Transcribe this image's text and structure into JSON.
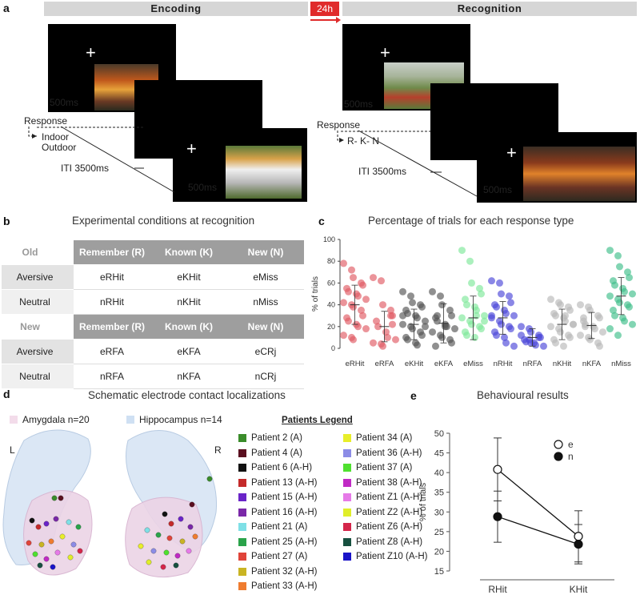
{
  "panels": {
    "a": "a",
    "b": "b",
    "c": "c",
    "d": "d",
    "e": "e"
  },
  "panel_a": {
    "encoding_label": "Encoding",
    "recognition_label": "Recognition",
    "delay_label": "24h",
    "fixation_duration": "500ms",
    "response_label": "Response",
    "encoding_choices": [
      "Indoor",
      "Outdoor"
    ],
    "recognition_choices": "R- K- N",
    "iti_label": "ITI 3500ms",
    "stimulus_duration": "500ms",
    "cross": "+"
  },
  "panel_b": {
    "title": "Experimental conditions at recognition",
    "columns": [
      "Remember (R)",
      "Known (K)",
      "New (N)"
    ],
    "groups": [
      {
        "name": "Old",
        "rows": [
          {
            "label": "Aversive",
            "cells": [
              "eRHit",
              "eKHit",
              "eMiss"
            ]
          },
          {
            "label": "Neutral",
            "cells": [
              "nRHit",
              "nKHit",
              "nMiss"
            ]
          }
        ]
      },
      {
        "name": "New",
        "rows": [
          {
            "label": "Aversive",
            "cells": [
              "eRFA",
              "eKFA",
              "eCRj"
            ]
          },
          {
            "label": "Neutral",
            "cells": [
              "nRFA",
              "nKFA",
              "nCRj"
            ]
          }
        ]
      }
    ]
  },
  "panel_d": {
    "title": "Schematic electrode contact localizations",
    "amygdala_label": "Amygdala n=20",
    "hippocampus_label": "Hippocampus n=14",
    "left": "L",
    "right": "R",
    "legend_title": "Patients Legend",
    "legend_col1": [
      {
        "name": "Patient 2 (A)",
        "color": "#3a8c2a"
      },
      {
        "name": "Patient 4 (A)",
        "color": "#5a0f1f"
      },
      {
        "name": "Patient 6 (A-H)",
        "color": "#111111"
      },
      {
        "name": "Patient 13 (A-H)",
        "color": "#c42a2a"
      },
      {
        "name": "Patient 15 (A-H)",
        "color": "#6a24c8"
      },
      {
        "name": "Patient 16 (A-H)",
        "color": "#7a28a8"
      },
      {
        "name": "Patient 21 (A)",
        "color": "#7fe0e6"
      },
      {
        "name": "Patient 25 (A-H)",
        "color": "#2aa34a"
      },
      {
        "name": "Patient 27 (A)",
        "color": "#e0443a"
      },
      {
        "name": "Patient 32 (A-H)",
        "color": "#c9b423"
      },
      {
        "name": "Patient 33 (A-H)",
        "color": "#ef7c2f"
      }
    ],
    "legend_col2": [
      {
        "name": "Patient 34 (A)",
        "color": "#e8ee2a"
      },
      {
        "name": "Patient 36 (A-H)",
        "color": "#8c8ce6"
      },
      {
        "name": "Patient 37 (A)",
        "color": "#4fe02f"
      },
      {
        "name": "Patient 38 (A-H)",
        "color": "#c02ac4"
      },
      {
        "name": "Patient Z1 (A-H)",
        "color": "#e67ae8"
      },
      {
        "name": "Patient Z2 (A-H)",
        "color": "#e0ee2a"
      },
      {
        "name": "Patient Z6 (A-H)",
        "color": "#d4264a"
      },
      {
        "name": "Patient Z8 (A-H)",
        "color": "#17503f"
      },
      {
        "name": "Patient Z10 (A-H)",
        "color": "#1a14c8"
      }
    ]
  },
  "chart_data": [
    {
      "id": "c",
      "type": "scatter",
      "title": "Percentage of trials for each response type",
      "ylabel": "% of trials",
      "ylim": [
        0,
        100
      ],
      "yticks": [
        0,
        20,
        40,
        60,
        80,
        100
      ],
      "categories": [
        "eRHit",
        "eRFA",
        "eKHit",
        "eKFA",
        "eMiss",
        "nRHit",
        "nRFA",
        "nKHit",
        "nKFA",
        "nMiss"
      ],
      "colors": [
        "#e05a64",
        "#e05a64",
        "#555555",
        "#555555",
        "#7ee89a",
        "#4b46d8",
        "#4b46d8",
        "#b8b8b8",
        "#b8b8b8",
        "#3fbf8a"
      ],
      "means": [
        40,
        20,
        22,
        23,
        28,
        28,
        10,
        22,
        21,
        48
      ],
      "sd": [
        18,
        14,
        14,
        18,
        20,
        15,
        8,
        14,
        12,
        17
      ],
      "points": [
        [
          78,
          72,
          65,
          60,
          58,
          55,
          52,
          50,
          48,
          45,
          42,
          40,
          38,
          35,
          30,
          28,
          25,
          22,
          20,
          18,
          12,
          10,
          8
        ],
        [
          65,
          62,
          40,
          35,
          30,
          25,
          20,
          15,
          10,
          8,
          5,
          4,
          2,
          30,
          22
        ],
        [
          52,
          48,
          42,
          40,
          38,
          35,
          32,
          30,
          28,
          25,
          22,
          20,
          18,
          15,
          12,
          10,
          8,
          5,
          3,
          20,
          30
        ],
        [
          52,
          48,
          40,
          35,
          30,
          28,
          25,
          22,
          20,
          18,
          15,
          12,
          10,
          8,
          5,
          2,
          30,
          20
        ],
        [
          90,
          80,
          60,
          55,
          50,
          45,
          40,
          38,
          35,
          30,
          28,
          25,
          22,
          20,
          18,
          15,
          12,
          10,
          30,
          25
        ],
        [
          62,
          60,
          50,
          48,
          42,
          40,
          38,
          35,
          32,
          30,
          28,
          25,
          22,
          20,
          18,
          15,
          12,
          10,
          5,
          2,
          30
        ],
        [
          20,
          18,
          15,
          12,
          10,
          8,
          6,
          5,
          3,
          2,
          12,
          8,
          5,
          10
        ],
        [
          45,
          42,
          40,
          38,
          35,
          32,
          30,
          28,
          25,
          22,
          20,
          18,
          15,
          12,
          10,
          8,
          5,
          2,
          30,
          22
        ],
        [
          40,
          38,
          35,
          30,
          28,
          25,
          22,
          20,
          18,
          15,
          12,
          10,
          8,
          5,
          2,
          28,
          20
        ],
        [
          90,
          85,
          75,
          70,
          65,
          62,
          58,
          55,
          52,
          50,
          48,
          45,
          42,
          40,
          38,
          35,
          30,
          28,
          25,
          22,
          18,
          12
        ]
      ]
    },
    {
      "id": "e",
      "type": "line",
      "title": "Behavioural results",
      "ylabel": "% of trials",
      "categories": [
        "RHit",
        "KHit"
      ],
      "ylim": [
        15,
        50
      ],
      "yticks": [
        15,
        20,
        25,
        30,
        35,
        40,
        45,
        50
      ],
      "series": [
        {
          "name": "e",
          "values": [
            40.8,
            23.8
          ],
          "err": [
            8.0,
            6.5
          ],
          "marker": "open"
        },
        {
          "name": "n",
          "values": [
            28.8,
            21.8
          ],
          "err": [
            6.5,
            5.0
          ],
          "marker": "filled"
        }
      ]
    }
  ]
}
